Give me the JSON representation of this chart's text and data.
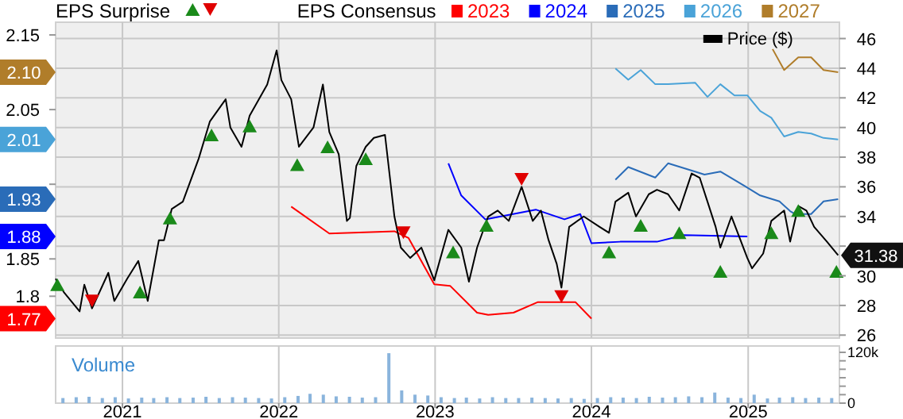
{
  "chart_data": [
    {
      "type": "line",
      "legend_title": "EPS Consensus",
      "annotations": [
        "EPS Surprise"
      ],
      "legend": "top right",
      "grid": true,
      "tick_labels": "y",
      "xlim": [
        "2020-07-29",
        "2025-08-02"
      ],
      "xticks": [
        "2021",
        "2022",
        "2023",
        "2024",
        "2025"
      ],
      "ylim": [
        1.744,
        2.167
      ],
      "yticks": [
        1.8,
        1.85,
        {
          "value": 1.95,
          "label": null
        },
        2.05,
        2.15,
        {
          "value": 1.77,
          "label": "1.77"
        },
        {
          "value": 1.88,
          "label": "1.88"
        },
        {
          "value": 1.93,
          "label": "1.93"
        },
        {
          "value": 2.01,
          "label": "2.01"
        },
        {
          "value": 2.1,
          "label": "2.10"
        }
      ],
      "y2lim": [
        25.8,
        47.1
      ],
      "y2ticks": [
        26,
        28,
        30,
        {
          "value": 32,
          "label": null
        },
        34,
        36,
        38,
        40,
        42,
        44,
        46
      ],
      "series": [
        {
          "name": "2023",
          "color": "#ff0000",
          "x": [
            "2022-01-30",
            "2022-04-29",
            "2022-09-28",
            "2022-10-31",
            "2022-12-30",
            "2023-02-05",
            "2023-04-09",
            "2023-05-05",
            "2023-07-03",
            "2023-08-28",
            "2023-11-25",
            "2024-01-01"
          ],
          "values": [
            1.92,
            1.884,
            1.887,
            1.878,
            1.816,
            1.814,
            1.778,
            1.775,
            1.778,
            1.792,
            1.792,
            1.77
          ]
        },
        {
          "name": "2024",
          "color": "#0000ff",
          "x": [
            "2023-02-01",
            "2023-03-03",
            "2023-04-28",
            "2023-08-24",
            "2023-10-30",
            "2023-12-06",
            "2024-01-01",
            "2024-03-08",
            "2024-06-02",
            "2024-08-04",
            "2024-12-30"
          ],
          "values": [
            1.978,
            1.935,
            1.903,
            1.916,
            1.903,
            1.91,
            1.871,
            1.873,
            1.873,
            1.882,
            1.88
          ]
        },
        {
          "name": "2025",
          "color": "#2a6cb8",
          "x": [
            "2024-02-26",
            "2024-03-27",
            "2024-05-29",
            "2024-06-28",
            "2024-08-30",
            "2024-09-21",
            "2024-10-28",
            "2024-12-23",
            "2025-01-29",
            "2025-03-15",
            "2025-04-09",
            "2025-04-21",
            "2025-05-28",
            "2025-06-26",
            "2025-07-30"
          ],
          "values": [
            1.956,
            1.973,
            1.959,
            1.978,
            1.967,
            1.963,
            1.967,
            1.948,
            1.935,
            1.927,
            1.914,
            1.91,
            1.91,
            1.927,
            1.93
          ]
        },
        {
          "name": "2026",
          "color": "#4aa3d8",
          "x": [
            "2024-02-26",
            "2024-03-27",
            "2024-04-25",
            "2024-05-29",
            "2024-06-28",
            "2024-08-30",
            "2024-09-28",
            "2024-10-28",
            "2024-11-30",
            "2024-12-30",
            "2025-01-29",
            "2025-02-24",
            "2025-03-26",
            "2025-04-28",
            "2025-05-28",
            "2025-06-26",
            "2025-07-30"
          ],
          "values": [
            2.105,
            2.09,
            2.103,
            2.084,
            2.084,
            2.086,
            2.067,
            2.084,
            2.069,
            2.069,
            2.048,
            2.039,
            2.014,
            2.02,
            2.018,
            2.012,
            2.01
          ]
        },
        {
          "name": "2027",
          "color": "#b07d2a",
          "x": [
            "2025-02-27",
            "2025-03-26",
            "2025-04-28",
            "2025-05-28",
            "2025-06-26",
            "2025-07-30"
          ],
          "values": [
            2.131,
            2.103,
            2.12,
            2.12,
            2.103,
            2.1
          ]
        },
        {
          "name": "Price ($)",
          "color": "#000000",
          "axis": "y2",
          "x": [
            "2020-07-29",
            "2020-08-17",
            "2020-09-23",
            "2020-10-04",
            "2020-10-22",
            "2020-11-29",
            "2020-12-13",
            "2021-01-12",
            "2021-02-07",
            "2021-03-01",
            "2021-03-27",
            "2021-04-08",
            "2021-04-26",
            "2021-05-22",
            "2021-06-28",
            "2021-07-24",
            "2021-08-30",
            "2021-09-10",
            "2021-10-06",
            "2021-10-25",
            "2021-12-05",
            "2021-12-27",
            "2022-01-07",
            "2022-01-30",
            "2022-02-17",
            "2022-03-23",
            "2022-04-14",
            "2022-04-29",
            "2022-05-21",
            "2022-06-09",
            "2022-06-16",
            "2022-07-01",
            "2022-07-23",
            "2022-08-11",
            "2022-09-06",
            "2022-09-28",
            "2022-10-13",
            "2022-11-04",
            "2022-11-30",
            "2022-12-30",
            "2023-02-01",
            "2023-03-03",
            "2023-03-21",
            "2023-04-09",
            "2023-05-05",
            "2023-05-27",
            "2023-06-22",
            "2023-07-22",
            "2023-08-17",
            "2023-09-05",
            "2023-09-23",
            "2023-10-12",
            "2023-10-23",
            "2023-11-10",
            "2023-12-14",
            "2024-01-20",
            "2024-02-11",
            "2024-02-26",
            "2024-03-27",
            "2024-04-14",
            "2024-05-14",
            "2024-06-02",
            "2024-06-28",
            "2024-07-24",
            "2024-08-22",
            "2024-09-10",
            "2024-09-28",
            "2024-10-17",
            "2024-10-28",
            "2024-11-23",
            "2024-12-30",
            "2025-01-10",
            "2025-02-05",
            "2025-02-24",
            "2025-03-26",
            "2025-04-09",
            "2025-04-28",
            "2025-05-17",
            "2025-06-04",
            "2025-07-04",
            "2025-07-30"
          ],
          "values": [
            29.8,
            28.9,
            27.6,
            29.4,
            27.8,
            30.2,
            28.3,
            29.8,
            31,
            28.3,
            32.4,
            32.4,
            34.5,
            35,
            37.9,
            40.4,
            41.9,
            40,
            38.7,
            40.8,
            42.9,
            45.2,
            43.2,
            41.9,
            38.7,
            40,
            42.9,
            39.7,
            38.2,
            33.7,
            33.9,
            37.4,
            38.7,
            39.3,
            39.5,
            34,
            31.9,
            31.2,
            31.9,
            29.7,
            33.1,
            31.9,
            29.6,
            31.9,
            34,
            34.4,
            33.7,
            36,
            33.7,
            34.4,
            32.4,
            30.8,
            29.2,
            33.3,
            34,
            33.3,
            32.9,
            35,
            35.6,
            34,
            35.5,
            35.8,
            35.5,
            34.4,
            36.9,
            36.6,
            35,
            33.3,
            31.9,
            34,
            31.2,
            30.5,
            31.5,
            33.7,
            34.4,
            32.3,
            34.7,
            34.4,
            33.3,
            32.3,
            31.38
          ],
          "value_labels": [
            null,
            null,
            null,
            null,
            null,
            null,
            null,
            null,
            null,
            null,
            null,
            null,
            null,
            null,
            null,
            null,
            null,
            null,
            null,
            null,
            null,
            null,
            null,
            null,
            null,
            null,
            null,
            null,
            null,
            null,
            null,
            null,
            null,
            null,
            null,
            null,
            null,
            null,
            null,
            null,
            null,
            null,
            null,
            null,
            null,
            null,
            null,
            null,
            null,
            null,
            null,
            null,
            null,
            null,
            null,
            null,
            null,
            null,
            null,
            null,
            null,
            null,
            null,
            null,
            null,
            null,
            null,
            null,
            null,
            null,
            null,
            null,
            null,
            null,
            null,
            null,
            null,
            null,
            null,
            null,
            "31.38"
          ]
        },
        {
          "type": "scatter",
          "color": "#1a8a1a",
          "axis": "y2",
          "marker": "triangle",
          "x": [
            "2020-08-02",
            "2021-02-11",
            "2021-04-22",
            "2021-07-28",
            "2021-10-25",
            "2022-02-13",
            "2022-04-25",
            "2022-07-23",
            "2023-02-12",
            "2023-05-01",
            "2024-02-11",
            "2024-04-25",
            "2024-07-24",
            "2024-10-28",
            "2025-02-24",
            "2025-04-28",
            "2025-07-26"
          ],
          "values": [
            29.4,
            28.9,
            33.9,
            39.5,
            40.1,
            37.5,
            38.7,
            37.9,
            31.6,
            33.4,
            31.6,
            33.4,
            32.9,
            30.3,
            32.9,
            34.4,
            30.3
          ]
        },
        {
          "type": "scatter",
          "color": "#e00000",
          "axis": "y2",
          "marker": "triangle",
          "x": [
            "2020-10-22",
            "2022-10-19",
            "2023-07-22",
            "2023-10-23"
          ],
          "values": [
            28.3,
            32.9,
            36.5,
            28.6
          ]
        }
      ]
    },
    {
      "type": "bar",
      "title": "Volume",
      "color": "#8ab4dc",
      "grid": "x",
      "xlim": [
        "2020-07-29",
        "2025-08-02"
      ],
      "xticks": [
        "2021",
        "2022",
        "2023",
        "2024",
        "2025"
      ],
      "ylim": [
        0,
        135000
      ],
      "yticks": [
        0,
        {
          "value": 20000,
          "label": null
        },
        {
          "value": 40000,
          "label": null
        },
        {
          "value": 60000,
          "label": null
        },
        {
          "value": 80000,
          "label": null
        },
        {
          "value": 100000,
          "label": null
        },
        {
          "value": 120000,
          "label": "120k"
        }
      ],
      "x": [
        "2020-08-15",
        "2020-09-15",
        "2020-10-15",
        "2020-11-15",
        "2020-12-15",
        "2021-01-15",
        "2021-02-15",
        "2021-03-15",
        "2021-04-15",
        "2021-05-15",
        "2021-06-15",
        "2021-07-15",
        "2021-08-15",
        "2021-09-15",
        "2021-10-15",
        "2021-11-15",
        "2021-12-15",
        "2022-01-15",
        "2022-02-15",
        "2022-03-15",
        "2022-04-15",
        "2022-05-15",
        "2022-06-15",
        "2022-07-15",
        "2022-08-15",
        "2022-09-15",
        "2022-10-15",
        "2022-11-15",
        "2022-12-15",
        "2023-01-15",
        "2023-02-15",
        "2023-03-15",
        "2023-04-15",
        "2023-05-15",
        "2023-06-15",
        "2023-07-15",
        "2023-08-15",
        "2023-09-15",
        "2023-10-15",
        "2023-11-15",
        "2023-12-15",
        "2024-01-15",
        "2024-02-15",
        "2024-03-15",
        "2024-04-15",
        "2024-05-15",
        "2024-06-15",
        "2024-07-15",
        "2024-08-15",
        "2024-09-15",
        "2024-10-15",
        "2024-11-15",
        "2024-12-15",
        "2025-01-15",
        "2025-02-15",
        "2025-03-15",
        "2025-04-15",
        "2025-05-15",
        "2025-06-15",
        "2025-07-15"
      ],
      "values": [
        12000,
        14000,
        15000,
        12000,
        14000,
        11000,
        13000,
        12000,
        14000,
        12000,
        13000,
        15000,
        12000,
        14000,
        13000,
        12000,
        11000,
        14000,
        17000,
        22000,
        20000,
        16000,
        15000,
        13000,
        14000,
        118000,
        30000,
        20000,
        18000,
        14000,
        12000,
        13000,
        11000,
        14000,
        12000,
        12000,
        13000,
        12000,
        11000,
        12000,
        10000,
        12000,
        14000,
        13000,
        12000,
        15000,
        13000,
        14000,
        16000,
        14000,
        25000,
        13000,
        12000,
        20000,
        11000,
        13000,
        14000,
        12000,
        13000,
        12000
      ]
    }
  ]
}
